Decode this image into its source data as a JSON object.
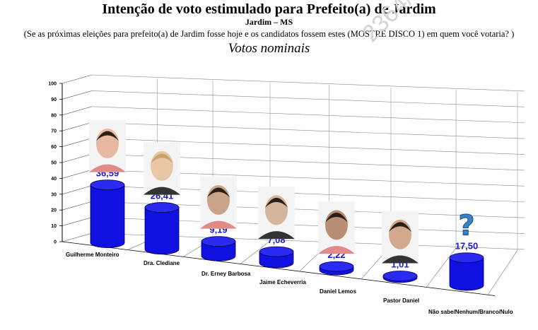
{
  "header": {
    "title": "Intenção de voto estimulado para Prefeito(a) de Jardim",
    "subtitle": "Jardim – MS",
    "question": "(Se as próximas eleições para prefeito(a) de Jardim fosse hoje e os candidatos fossem estes (MOSTRE DISCO 1) em quem você votaria?  )",
    "section": "Votos nominais",
    "watermark": "2364/2024"
  },
  "chart_data": {
    "type": "bar",
    "style": "3d-cylinder",
    "title": "Intenção de voto estimulado para Prefeito(a) de Jardim",
    "categories": [
      "Guilherme Monteiro",
      "Dra. Clediane",
      "Dr. Erney Barbosa",
      "Jaime Echeverria",
      "Daniel Lemos",
      "Pastor Daniel",
      "Não sabe/Nenhum/Branco/Nulo"
    ],
    "values": [
      36.59,
      26.41,
      9.19,
      7.08,
      2.22,
      1.01,
      17.5
    ],
    "value_labels": [
      "36,59",
      "26,41",
      "9,19",
      "7,08",
      "2,22",
      "1,01",
      "17,50"
    ],
    "ylim": [
      0,
      100
    ],
    "yticks": [
      "0",
      "10",
      "20",
      "30",
      "40",
      "50",
      "60",
      "70",
      "80",
      "90",
      "100"
    ],
    "grid": true,
    "bar_color": "#1010e0",
    "label_color": "#1a1ac8",
    "icons": [
      "candidate-photo",
      "candidate-photo",
      "candidate-photo",
      "candidate-photo",
      "candidate-photo",
      "candidate-photo",
      "question-mark-icon"
    ]
  }
}
